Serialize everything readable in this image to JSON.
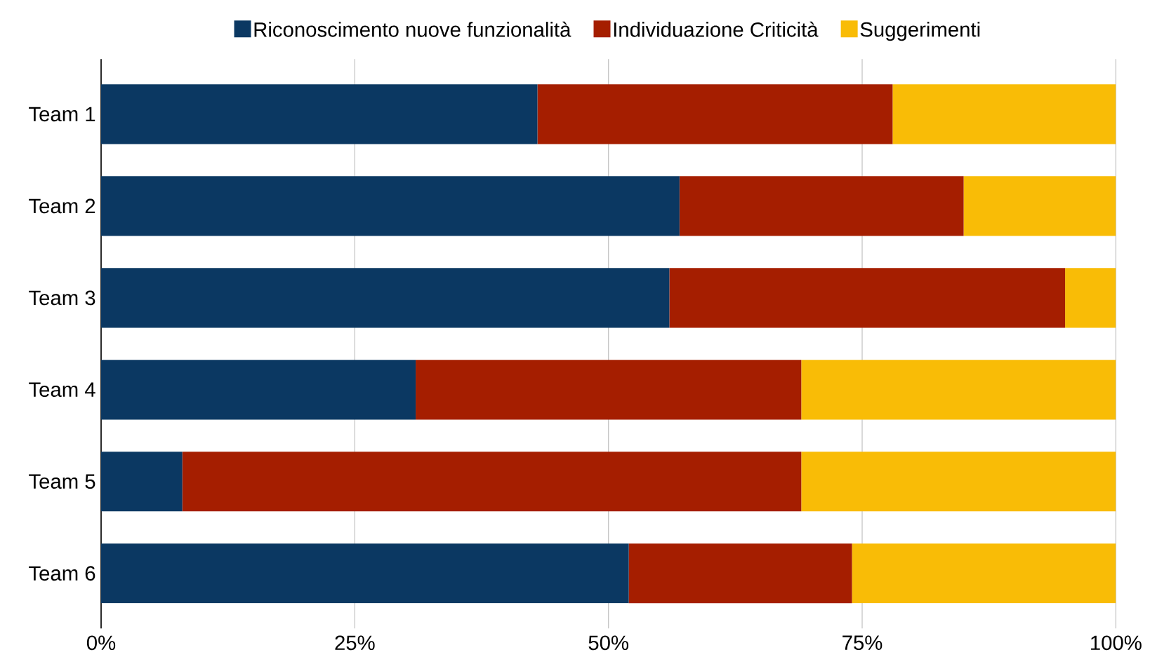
{
  "chart_data": {
    "type": "bar",
    "orientation": "horizontal",
    "stacked": true,
    "categories": [
      "Team 1",
      "Team 2",
      "Team 3",
      "Team 4",
      "Team 5",
      "Team 6"
    ],
    "series": [
      {
        "name": "Riconoscimento nuove funzionalità",
        "color": "#0b3862",
        "values": [
          43,
          57,
          56,
          31,
          8,
          52
        ]
      },
      {
        "name": "Individuazione Criticità",
        "color": "#a51e00",
        "values": [
          35,
          28,
          39,
          38,
          61,
          22
        ]
      },
      {
        "name": "Suggerimenti",
        "color": "#f9bc06",
        "values": [
          22,
          15,
          5,
          31,
          31,
          26
        ]
      }
    ],
    "xlim": [
      0,
      100
    ],
    "xticks": [
      {
        "value": 0,
        "label": "0%"
      },
      {
        "value": 25,
        "label": "25%"
      },
      {
        "value": 50,
        "label": "50%"
      },
      {
        "value": 75,
        "label": "75%"
      },
      {
        "value": 100,
        "label": "100%"
      }
    ],
    "grid": "x",
    "legend": "top"
  }
}
